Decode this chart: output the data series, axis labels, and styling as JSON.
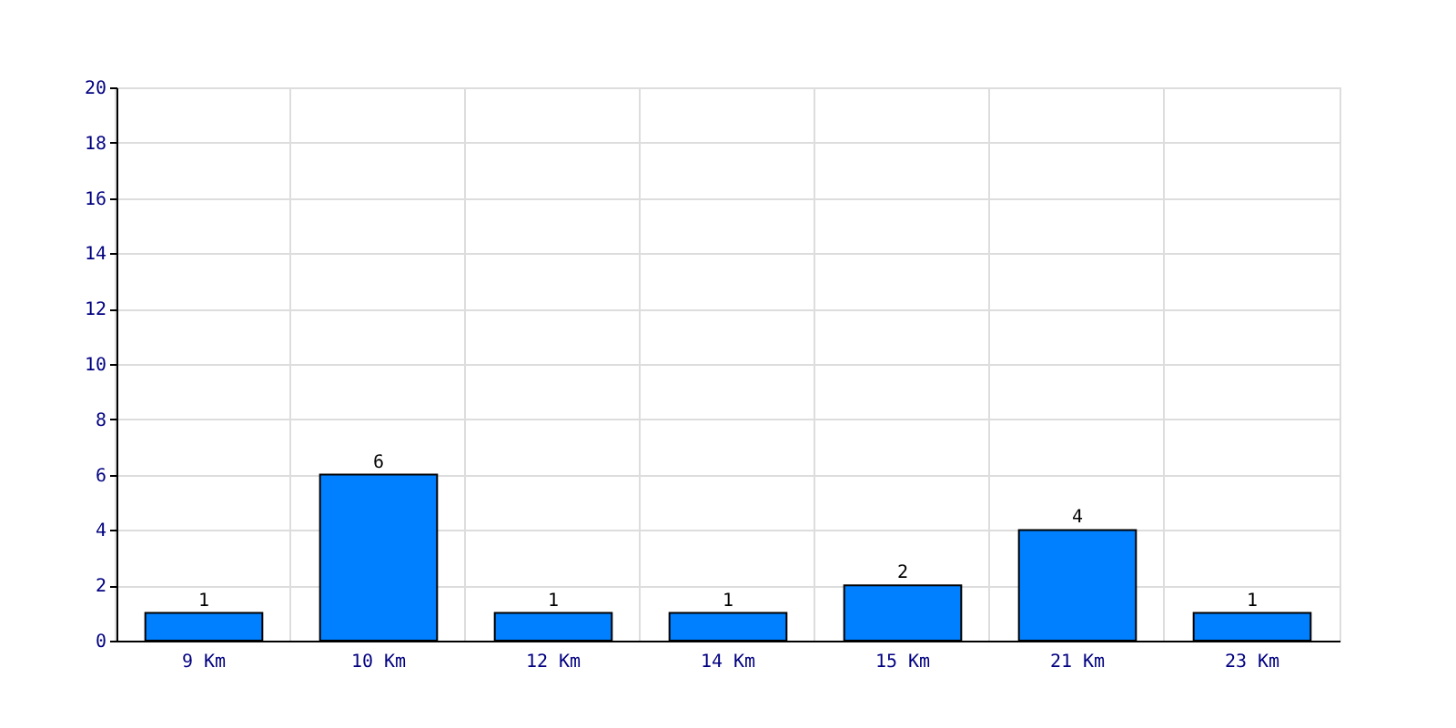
{
  "chart_data": {
    "type": "bar",
    "categories": [
      "9 Km",
      "10 Km",
      "12 Km",
      "14 Km",
      "15 Km",
      "21 Km",
      "23 Km"
    ],
    "values": [
      1,
      6,
      1,
      1,
      2,
      4,
      1
    ],
    "color": "#0080ff",
    "ylim": [
      0,
      20
    ],
    "yticks": [
      0,
      2,
      4,
      6,
      8,
      10,
      12,
      14,
      16,
      18,
      20
    ],
    "grid": true,
    "data_labels": true
  }
}
